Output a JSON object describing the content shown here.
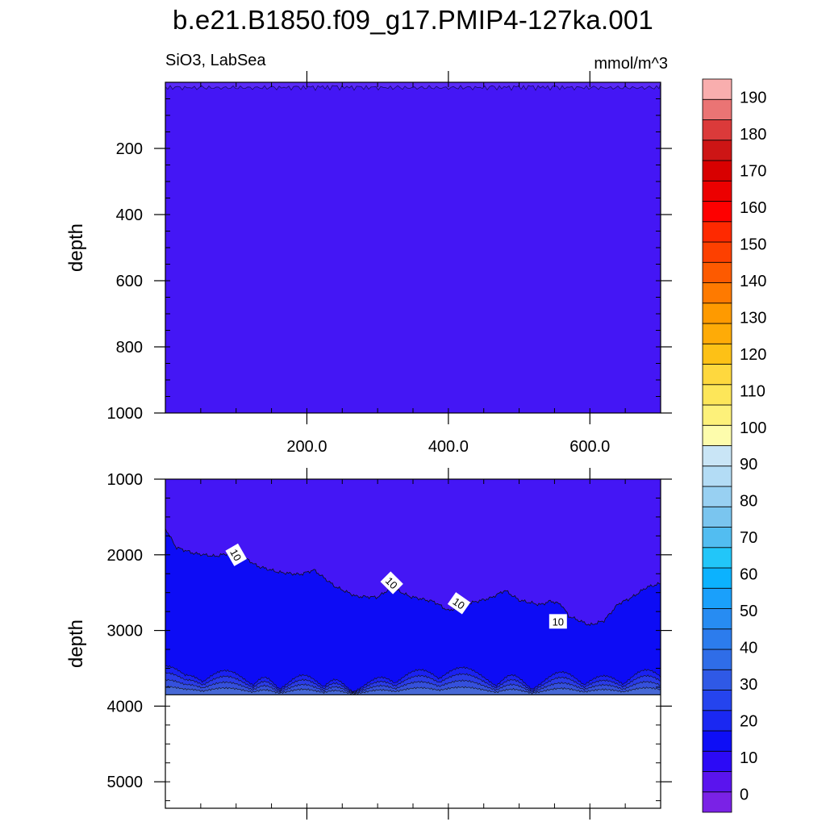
{
  "chart_data": [
    {
      "type": "heatmap",
      "panel": "upper",
      "title": "b.e21.B1850.f09_g17.PMIP4-127ka.001",
      "subtitle_left": "SiO3, LabSea",
      "subtitle_right": "mmol/m^3",
      "xlabel": "",
      "ylabel": "depth",
      "xlim": [
        0,
        700
      ],
      "ylim": [
        1000,
        0
      ],
      "x_ticks": [
        200,
        400,
        600
      ],
      "x_tick_labels": [
        "200.0",
        "400.0",
        "600.0"
      ],
      "y_ticks": [
        200,
        400,
        600,
        800,
        1000
      ],
      "y_tick_labels": [
        "200",
        "400",
        "600",
        "800",
        "1000"
      ],
      "dominant_value": "0-10",
      "fill_color": "#4416f5"
    },
    {
      "type": "heatmap",
      "panel": "lower",
      "xlabel": "",
      "ylabel": "depth",
      "xlim": [
        0,
        700
      ],
      "ylim": [
        5350,
        1000
      ],
      "y_ticks": [
        1000,
        2000,
        3000,
        4000,
        5000
      ],
      "y_tick_labels": [
        "1000",
        "2000",
        "3000",
        "4000",
        "5000"
      ],
      "bottom_depth": 3850,
      "contour_labels": [
        {
          "x": 100,
          "depth": 2000,
          "text": "10"
        },
        {
          "x": 320,
          "depth": 2370,
          "text": "10"
        },
        {
          "x": 415,
          "depth": 2640,
          "text": "10"
        },
        {
          "x": 555,
          "depth": 2880,
          "text": "10"
        }
      ],
      "contour_10_depth": [
        [
          0,
          1650
        ],
        [
          15,
          1900
        ],
        [
          40,
          1980
        ],
        [
          70,
          2020
        ],
        [
          100,
          1960
        ],
        [
          130,
          2150
        ],
        [
          160,
          2230
        ],
        [
          190,
          2260
        ],
        [
          210,
          2200
        ],
        [
          240,
          2420
        ],
        [
          270,
          2550
        ],
        [
          300,
          2560
        ],
        [
          320,
          2430
        ],
        [
          345,
          2550
        ],
        [
          380,
          2620
        ],
        [
          400,
          2740
        ],
        [
          430,
          2640
        ],
        [
          460,
          2570
        ],
        [
          480,
          2470
        ],
        [
          500,
          2600
        ],
        [
          530,
          2660
        ],
        [
          545,
          2610
        ],
        [
          560,
          2660
        ],
        [
          570,
          2810
        ],
        [
          600,
          2930
        ],
        [
          620,
          2870
        ],
        [
          640,
          2650
        ],
        [
          660,
          2560
        ],
        [
          680,
          2430
        ],
        [
          700,
          2380
        ]
      ]
    }
  ],
  "colorbar": {
    "levels": [
      "0",
      "10",
      "20",
      "30",
      "40",
      "50",
      "60",
      "70",
      "80",
      "90",
      "100",
      "110",
      "120",
      "130",
      "140",
      "150",
      "160",
      "170",
      "180",
      "190"
    ],
    "colors": [
      "#7a22e6",
      "#5a14ee",
      "#2c0af6",
      "#0e0ef6",
      "#1a28f2",
      "#2544ee",
      "#2f59e6",
      "#2f6de8",
      "#2c7ced",
      "#278cf2",
      "#1aa0fb",
      "#0cb2fe",
      "#22c6f9",
      "#52bdf1",
      "#7ac5ef",
      "#98d0f2",
      "#b3dcf5",
      "#c9e5f6",
      "#fdfcac",
      "#fdf17a",
      "#fde659",
      "#fed83e",
      "#fdc116",
      "#feab07",
      "#fe9a00",
      "#fe7a00",
      "#fd5a00",
      "#fd4000",
      "#fe2900",
      "#fe0000",
      "#ec0000",
      "#d80000",
      "#cd1515",
      "#db3a3a",
      "#ea7474",
      "#f9aeae"
    ]
  }
}
